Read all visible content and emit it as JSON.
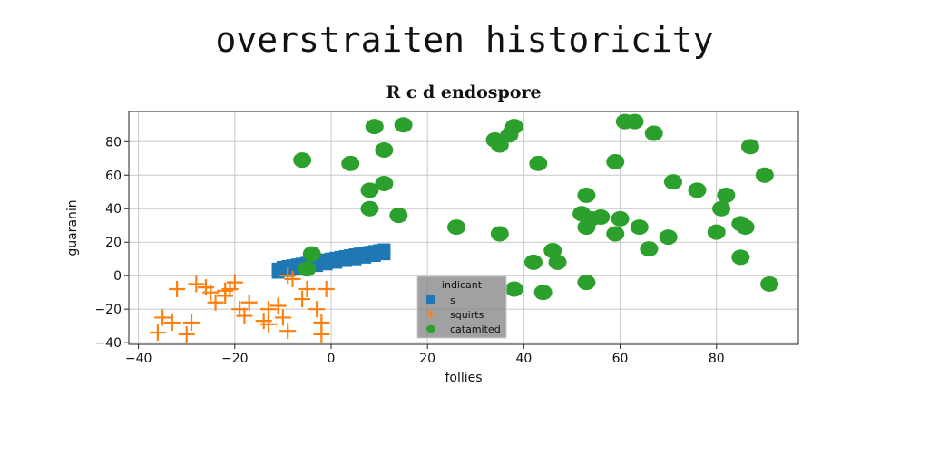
{
  "page_title": "overstraiten historicity",
  "chart_data": {
    "type": "scatter",
    "title": "R c d endospore",
    "xlabel": "follies",
    "ylabel": "guaranin",
    "xlim": [
      -42,
      97
    ],
    "ylim": [
      -41,
      98
    ],
    "xticks": [
      -40,
      -20,
      0,
      20,
      40,
      60,
      80
    ],
    "yticks": [
      -40,
      -20,
      0,
      20,
      40,
      60,
      80
    ],
    "grid": true,
    "legend": {
      "title": "indicant",
      "position": "lower-center"
    },
    "series": [
      {
        "name": "s",
        "marker": "square",
        "color": "#1f77b4",
        "points": [
          [
            -11,
            4
          ],
          [
            -10,
            5
          ],
          [
            -9,
            5.5
          ],
          [
            -8,
            6
          ],
          [
            -7,
            6.5
          ],
          [
            -6,
            7
          ],
          [
            -5,
            7.5
          ],
          [
            -4,
            8
          ],
          [
            -3,
            8.5
          ],
          [
            -2,
            9
          ],
          [
            -1,
            9.5
          ],
          [
            0,
            10
          ],
          [
            1,
            10.5
          ],
          [
            2,
            11
          ],
          [
            3,
            11.5
          ],
          [
            4,
            12
          ],
          [
            5,
            12.5
          ],
          [
            6,
            13
          ],
          [
            7,
            13.5
          ],
          [
            8,
            14
          ],
          [
            9,
            14.5
          ],
          [
            10,
            15
          ],
          [
            11,
            15.5
          ],
          [
            -11,
            2
          ],
          [
            -9,
            3
          ],
          [
            -7,
            4
          ],
          [
            -5,
            5
          ],
          [
            -3,
            6
          ],
          [
            -1,
            7
          ],
          [
            1,
            8
          ],
          [
            3,
            9
          ],
          [
            5,
            10
          ],
          [
            7,
            11
          ],
          [
            9,
            12
          ],
          [
            11,
            13
          ]
        ]
      },
      {
        "name": "squirts",
        "marker": "plus",
        "color": "#ff7f0e",
        "points": [
          [
            -36,
            -34
          ],
          [
            -35,
            -25
          ],
          [
            -33,
            -28
          ],
          [
            -32,
            -8
          ],
          [
            -30,
            -35
          ],
          [
            -29,
            -28
          ],
          [
            -28,
            -5
          ],
          [
            -26,
            -7
          ],
          [
            -25,
            -10
          ],
          [
            -24,
            -16
          ],
          [
            -22,
            -12
          ],
          [
            -22,
            -9
          ],
          [
            -21,
            -8
          ],
          [
            -20,
            -4
          ],
          [
            -19,
            -20
          ],
          [
            -18,
            -24
          ],
          [
            -17,
            -16
          ],
          [
            -14,
            -27
          ],
          [
            -13,
            -29
          ],
          [
            -13,
            -20
          ],
          [
            -11,
            -18
          ],
          [
            -10,
            -25
          ],
          [
            -9,
            -33
          ],
          [
            -9,
            0
          ],
          [
            -8,
            -2
          ],
          [
            -6,
            -14
          ],
          [
            -5,
            -8
          ],
          [
            -3,
            -20
          ],
          [
            -2,
            -28
          ],
          [
            -2,
            -35
          ],
          [
            -1,
            -8
          ]
        ]
      },
      {
        "name": "catamited",
        "marker": "circle",
        "color": "#2ca02c",
        "points": [
          [
            -6,
            69
          ],
          [
            -4,
            13
          ],
          [
            -5,
            4
          ],
          [
            4,
            67
          ],
          [
            8,
            51
          ],
          [
            8,
            40
          ],
          [
            9,
            89
          ],
          [
            11,
            75
          ],
          [
            11,
            55
          ],
          [
            14,
            36
          ],
          [
            15,
            90
          ],
          [
            26,
            29
          ],
          [
            34,
            81
          ],
          [
            35,
            78
          ],
          [
            35,
            25
          ],
          [
            37,
            84
          ],
          [
            38,
            89
          ],
          [
            38,
            -8
          ],
          [
            42,
            8
          ],
          [
            43,
            67
          ],
          [
            44,
            -10
          ],
          [
            46,
            15
          ],
          [
            47,
            8
          ],
          [
            52,
            37
          ],
          [
            53,
            48
          ],
          [
            53,
            29
          ],
          [
            53,
            -4
          ],
          [
            54,
            34
          ],
          [
            56,
            35
          ],
          [
            59,
            68
          ],
          [
            59,
            25
          ],
          [
            60,
            34
          ],
          [
            61,
            92
          ],
          [
            63,
            92
          ],
          [
            64,
            29
          ],
          [
            66,
            16
          ],
          [
            67,
            85
          ],
          [
            70,
            23
          ],
          [
            71,
            56
          ],
          [
            76,
            51
          ],
          [
            80,
            26
          ],
          [
            81,
            40
          ],
          [
            82,
            48
          ],
          [
            85,
            31
          ],
          [
            85,
            11
          ],
          [
            86,
            29
          ],
          [
            87,
            77
          ],
          [
            90,
            60
          ],
          [
            91,
            -5
          ]
        ]
      }
    ]
  }
}
